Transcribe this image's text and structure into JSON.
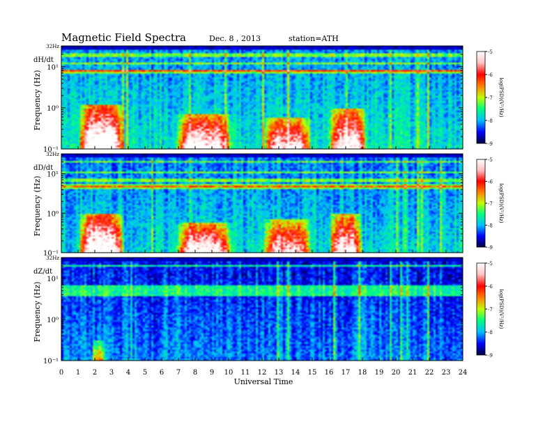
{
  "header": {
    "title": "Magnetic  Field  Spectra",
    "date": "Dec. 8  , 2013",
    "station": "station=ATH"
  },
  "chart_data": {
    "type": "heatmap",
    "xlabel": "Universal Time",
    "x_ticks": [
      "0",
      "1",
      "2",
      "3",
      "4",
      "5",
      "6",
      "7",
      "8",
      "9",
      "10",
      "11",
      "12",
      "13",
      "14",
      "15",
      "16",
      "17",
      "18",
      "19",
      "20",
      "21",
      "22",
      "23",
      "24"
    ],
    "xlim": [
      0,
      24
    ],
    "panels": [
      {
        "label": "dH/dt",
        "top_tick": "32Hz",
        "ylabel": "Frequency  (Hz)",
        "y_ticks": [
          "10¹",
          "10⁰",
          "10⁻¹"
        ],
        "ylim": [
          0.1,
          32
        ],
        "yscale": "log",
        "line_freqs": [
          20,
          18.5,
          12,
          8,
          7.5
        ],
        "bursts": [
          {
            "t0": 1.0,
            "t1": 3.8,
            "fmax": 1.2,
            "strength": 1.0
          },
          {
            "t0": 6.8,
            "t1": 10.3,
            "fmax": 0.7,
            "strength": 0.85
          },
          {
            "t0": 12.0,
            "t1": 15.0,
            "fmax": 0.6,
            "strength": 0.75
          },
          {
            "t0": 16.0,
            "t1": 18.3,
            "fmax": 1.0,
            "strength": 0.85
          }
        ],
        "bg_level": 0.32
      },
      {
        "label": "dD/dt",
        "top_tick": "32Hz",
        "ylabel": "Frequency  (Hz)",
        "y_ticks": [
          "10¹",
          "10⁰",
          "10⁻¹"
        ],
        "ylim": [
          0.1,
          32
        ],
        "yscale": "log",
        "line_freqs": [
          20,
          11,
          7,
          5,
          4.5
        ],
        "bursts": [
          {
            "t0": 1.0,
            "t1": 3.8,
            "fmax": 1.0,
            "strength": 1.0
          },
          {
            "t0": 6.8,
            "t1": 10.3,
            "fmax": 0.6,
            "strength": 0.85
          },
          {
            "t0": 12.0,
            "t1": 15.0,
            "fmax": 0.7,
            "strength": 0.75
          },
          {
            "t0": 16.0,
            "t1": 18.0,
            "fmax": 1.0,
            "strength": 0.85
          }
        ],
        "bg_level": 0.3
      },
      {
        "label": "dZ/dt",
        "top_tick": "32Hz",
        "ylabel": "Frequency  (Hz)",
        "y_ticks": [
          "10¹",
          "10⁰",
          "10⁻¹"
        ],
        "ylim": [
          0.1,
          32
        ],
        "yscale": "log",
        "line_freqs": [
          20,
          6,
          5,
          4
        ],
        "bursts": [
          {
            "t0": 1.8,
            "t1": 2.6,
            "fmax": 0.3,
            "strength": 0.45
          }
        ],
        "bg_level": 0.22
      }
    ],
    "colorbar": {
      "label": "log(PSD)(V²/Hz)",
      "ticks": [
        "-5",
        "-6",
        "-7",
        "-8",
        "-9"
      ],
      "range": [
        -9,
        -5
      ],
      "colors": [
        "#000040",
        "#0000ff",
        "#00c0ff",
        "#00ff80",
        "#c0ff00",
        "#ff8000",
        "#ff0000",
        "#ffc0c0",
        "#ffffff"
      ]
    }
  }
}
